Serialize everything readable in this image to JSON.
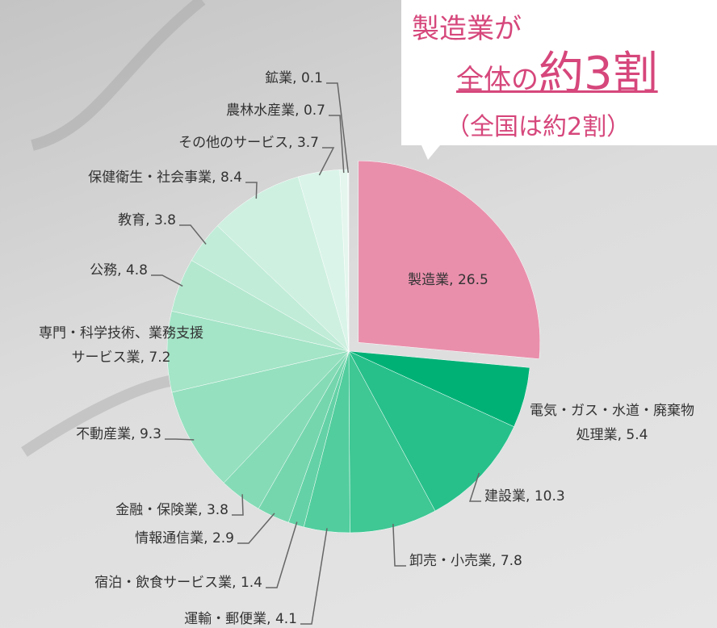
{
  "chart_data": {
    "type": "pie",
    "annotation": {
      "line1": "製造業が",
      "line2a": "全体の",
      "line2b": "約3割",
      "line3": "（全国は約2割）"
    },
    "label_separator": ", ",
    "categories": [
      "製造業",
      "電気・ガス・水道・廃棄物処理業",
      "建設業",
      "卸売・小売業",
      "運輸・郵便業",
      "宿泊・飲食サービス業",
      "情報通信業",
      "金融・保険業",
      "不動産業",
      "専門・科学技術、業務支援サービス業",
      "公務",
      "教育",
      "保健衛生・社会事業",
      "その他のサービス",
      "農林水産業",
      "鉱業"
    ],
    "values": [
      26.5,
      5.4,
      10.3,
      7.8,
      4.1,
      1.4,
      2.9,
      3.8,
      9.3,
      7.2,
      4.8,
      3.8,
      8.4,
      3.7,
      0.7,
      0.1
    ],
    "colors": [
      "#e98fac",
      "#00b176",
      "#27c08b",
      "#3fc794",
      "#52cd9e",
      "#64d2a6",
      "#75d6ae",
      "#85dbb6",
      "#95e0bf",
      "#a4e4c7",
      "#b3e8cf",
      "#c0ecd8",
      "#cef0e1",
      "#daf4e9",
      "#e4f6ee",
      "#eef9f4"
    ],
    "exploded": [
      0
    ]
  }
}
